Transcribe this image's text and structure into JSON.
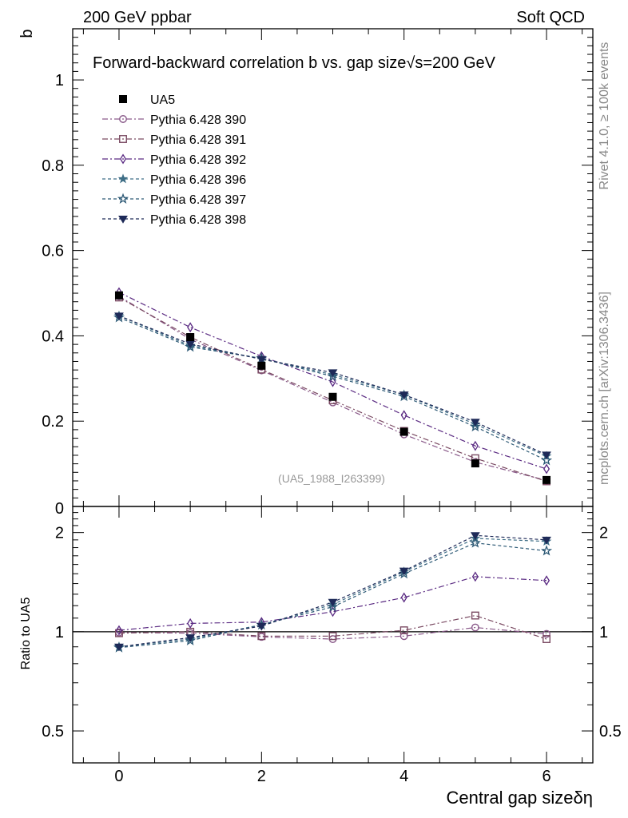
{
  "header": {
    "left_label": "200 GeV ppbar",
    "right_label": "Soft QCD"
  },
  "side_labels": {
    "rivet": "Rivet 4.1.0, ≥ 100k events",
    "mcplots": "mcplots.cern.ch [arXiv:1306.3436]"
  },
  "chart_data": {
    "type": "line",
    "title": "Forward-backward correlation b vs. gap size",
    "title_energy": "√s=200 GeV",
    "analysis_id": "(UA5_1988_I263399)",
    "xlabel": "Central gap sizeδη",
    "ylabel": "b",
    "ratio_ylabel": "Ratio to UA5",
    "xlim": [
      -0.65,
      6.65
    ],
    "ylim": [
      0,
      1.12
    ],
    "ratio_ylim": [
      0.4,
      2.4
    ],
    "x_ticks": [
      0,
      2,
      4,
      6
    ],
    "y_ticks": [
      0.2,
      0.4,
      0.6,
      0.8,
      1
    ],
    "y_tick_labels": [
      "0.2",
      "0.4",
      "0.6",
      "0.8",
      "1"
    ],
    "y_zero_label": "0",
    "ratio_ticks": [
      0.5,
      1,
      2
    ],
    "ratio_tick_labels": [
      "0.5",
      "1",
      "2"
    ],
    "x": [
      0,
      1,
      2,
      3,
      4,
      5,
      6
    ],
    "data": {
      "name": "UA5",
      "values": [
        0.495,
        0.397,
        0.33,
        0.257,
        0.175,
        0.101,
        0.062
      ]
    },
    "series": [
      {
        "name": "Pythia 6.428 390",
        "color": "#8a5a8a",
        "marker": "circle-open",
        "dash": "7,3,2,3",
        "values": [
          0.493,
          0.392,
          0.319,
          0.244,
          0.169,
          0.104,
          0.061
        ],
        "ratio": [
          0.995,
          0.99,
          0.965,
          0.95,
          0.97,
          1.03,
          0.985
        ]
      },
      {
        "name": "Pythia 6.428 391",
        "color": "#7a4a62",
        "marker": "square-open",
        "dash": "7,3,2,3",
        "values": [
          0.49,
          0.397,
          0.321,
          0.249,
          0.177,
          0.113,
          0.059
        ],
        "ratio": [
          0.99,
          1.0,
          0.97,
          0.97,
          1.01,
          1.12,
          0.95
        ]
      },
      {
        "name": "Pythia 6.428 392",
        "color": "#5a2a82",
        "marker": "diamond-open",
        "dash": "7,3,2,3",
        "values": [
          0.502,
          0.42,
          0.352,
          0.292,
          0.214,
          0.142,
          0.088
        ],
        "ratio": [
          1.01,
          1.06,
          1.07,
          1.15,
          1.27,
          1.47,
          1.43
        ]
      },
      {
        "name": "Pythia 6.428 396",
        "color": "#3e6e86",
        "marker": "star-filled",
        "dash": "4,3",
        "values": [
          0.447,
          0.377,
          0.347,
          0.309,
          0.262,
          0.193,
          0.118
        ],
        "ratio": [
          0.9,
          0.95,
          1.05,
          1.21,
          1.52,
          1.92,
          1.88
        ]
      },
      {
        "name": "Pythia 6.428 397",
        "color": "#2e5a76",
        "marker": "star-open",
        "dash": "4,3",
        "values": [
          0.443,
          0.374,
          0.347,
          0.305,
          0.258,
          0.187,
          0.108
        ],
        "ratio": [
          0.895,
          0.94,
          1.05,
          1.19,
          1.5,
          1.86,
          1.76
        ]
      },
      {
        "name": "Pythia 6.428 398",
        "color": "#1e2a58",
        "marker": "triangle-down-filled",
        "dash": "4,3",
        "values": [
          0.447,
          0.381,
          0.345,
          0.314,
          0.262,
          0.198,
          0.121
        ],
        "ratio": [
          0.9,
          0.96,
          1.04,
          1.23,
          1.53,
          1.96,
          1.9
        ]
      }
    ]
  }
}
